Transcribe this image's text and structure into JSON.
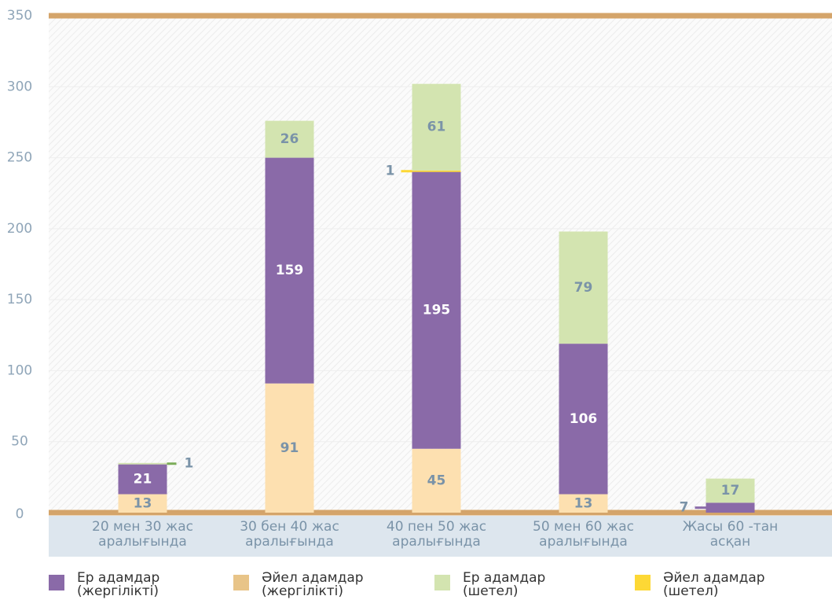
{
  "chart_data": {
    "type": "bar",
    "stacked": true,
    "categories": [
      "20 мен 30 жас аралығында",
      "30 бен 40 жас аралығында",
      "40 пен 50 жас аралығында",
      "50 мен 60 жас аралығында",
      "Жасы 60 -тан асқан"
    ],
    "series": [
      {
        "name": "Әйел адамдар (жергілікті)",
        "color": "#fde0b0",
        "values": [
          13,
          91,
          45,
          13,
          0
        ]
      },
      {
        "name": "Ер адамдар (жергілікті)",
        "color": "#8a6aa8",
        "values": [
          21,
          159,
          195,
          106,
          7
        ]
      },
      {
        "name": "Әйел адамдар (шетел)",
        "color": "#fdd835",
        "values": [
          0,
          0,
          1,
          0,
          0
        ]
      },
      {
        "name": "Ер адамдар (шетел)",
        "color": "#d3e4b0",
        "values": [
          1,
          26,
          61,
          79,
          17
        ]
      }
    ],
    "ylim": [
      0,
      350
    ],
    "yticks": [
      0,
      50,
      100,
      150,
      200,
      250,
      300,
      350
    ],
    "grid": true
  }
}
